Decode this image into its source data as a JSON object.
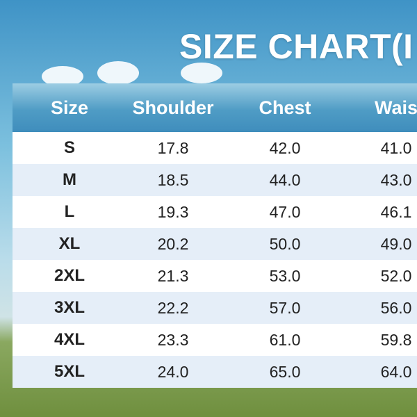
{
  "header": {
    "title": "SIZE CHART(I"
  },
  "table": {
    "columns": [
      "Size",
      "Shoulder",
      "Chest",
      "Wais"
    ],
    "rows": [
      [
        "S",
        "17.8",
        "42.0",
        "41.0"
      ],
      [
        "M",
        "18.5",
        "44.0",
        "43.0"
      ],
      [
        "L",
        "19.3",
        "47.0",
        "46.1"
      ],
      [
        "XL",
        "20.2",
        "50.0",
        "49.0"
      ],
      [
        "2XL",
        "21.3",
        "53.0",
        "52.0"
      ],
      [
        "3XL",
        "22.2",
        "57.0",
        "56.0"
      ],
      [
        "4XL",
        "23.3",
        "61.0",
        "59.8"
      ],
      [
        "5XL",
        "24.0",
        "65.0",
        "64.0"
      ]
    ]
  }
}
